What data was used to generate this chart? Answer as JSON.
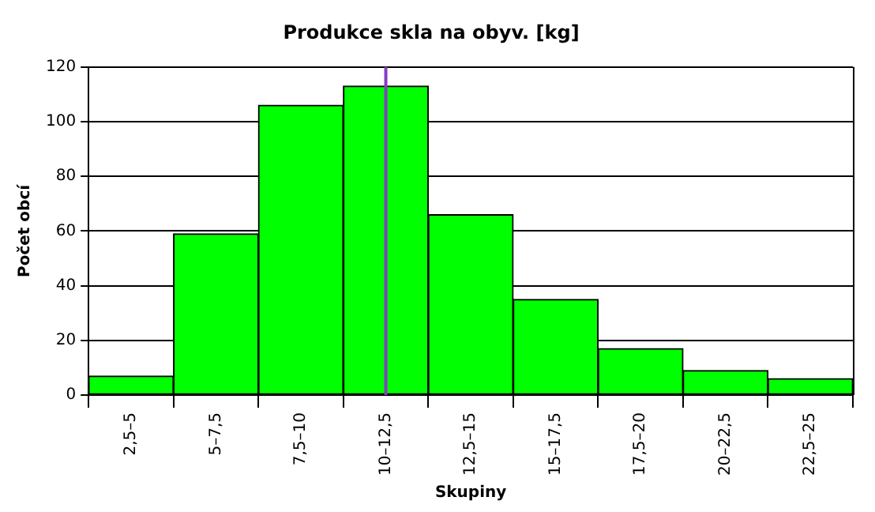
{
  "chart_data": {
    "type": "bar",
    "title": "Produkce skla na obyv. [kg]",
    "xlabel": "Skupiny",
    "ylabel": "Počet obcí",
    "categories": [
      "2,5–5",
      "5–7,5",
      "7,5–10",
      "10–12,5",
      "12,5–15",
      "15–17,5",
      "17,5–20",
      "20–22,5",
      "22,5–25"
    ],
    "values": [
      7,
      59,
      106,
      113,
      66,
      35,
      17,
      9,
      6
    ],
    "color": "#00ff00",
    "ylim": [
      0,
      120
    ],
    "yticks": [
      0,
      20,
      40,
      60,
      80,
      100,
      120
    ],
    "grid": "y",
    "ref_lines": [
      {
        "axis": "x",
        "value": "10–12,5",
        "color": "#8040c0"
      }
    ]
  }
}
